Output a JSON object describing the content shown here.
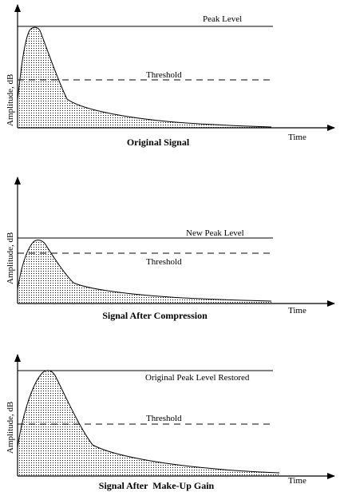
{
  "panels": [
    {
      "caption": "Original Signal",
      "y_axis_label": "Amplitude, dB",
      "x_axis_label": "Time",
      "upper_line_label": "Peak Level",
      "threshold_label": "Threshold"
    },
    {
      "caption": "Signal After Compression",
      "y_axis_label": "Amplitude, dB",
      "x_axis_label": "Time",
      "upper_line_label": "New Peak Level",
      "threshold_label": "Threshold"
    },
    {
      "caption": "Signal After  Make-Up Gain",
      "y_axis_label": "Amplitude, dB",
      "x_axis_label": "Time",
      "upper_line_label": "Original Peak Level Restored",
      "threshold_label": "Threshold"
    }
  ]
}
